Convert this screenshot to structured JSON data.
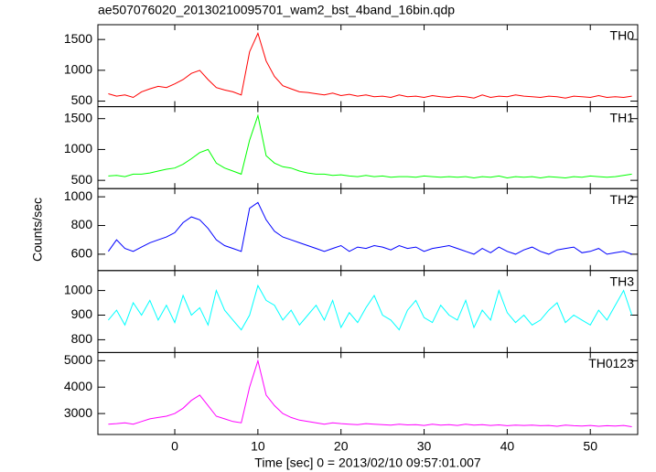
{
  "chart_data": {
    "type": "line",
    "title": "ae507076020_20130210095701_wam2_bst_4band_16bin.qdp",
    "x_label": "Time [sec] 0 = 2013/02/10 09:57:01.007",
    "y_label": "Counts/sec",
    "xlim": [
      -9.25,
      55.7
    ],
    "xticks": [
      0,
      10,
      20,
      30,
      40,
      50
    ],
    "x": [
      -8,
      -7,
      -6,
      -5,
      -4,
      -3,
      -2,
      -1,
      0,
      1,
      2,
      3,
      4,
      5,
      6,
      7,
      8,
      9,
      10,
      11,
      12,
      13,
      14,
      15,
      16,
      17,
      18,
      19,
      20,
      21,
      22,
      23,
      24,
      25,
      26,
      27,
      28,
      29,
      30,
      31,
      32,
      33,
      34,
      35,
      36,
      37,
      38,
      39,
      40,
      41,
      42,
      43,
      44,
      45,
      46,
      47,
      48,
      49,
      50,
      51,
      52,
      53,
      54,
      55
    ],
    "series": [
      {
        "name": "TH0",
        "color": "#ff0000",
        "ylim": [
          410,
          1740
        ],
        "yticks": [
          500,
          1000,
          1500
        ],
        "values": [
          620,
          580,
          600,
          560,
          650,
          700,
          740,
          720,
          780,
          850,
          950,
          1000,
          850,
          720,
          680,
          650,
          600,
          1300,
          1600,
          1150,
          900,
          750,
          700,
          650,
          640,
          620,
          600,
          630,
          590,
          610,
          580,
          600,
          570,
          580,
          560,
          600,
          570,
          580,
          560,
          590,
          570,
          560,
          580,
          570,
          550,
          600,
          560,
          580,
          570,
          600,
          580,
          570,
          560,
          580,
          570,
          550,
          580,
          570,
          560,
          590,
          560,
          570,
          560,
          580
        ]
      },
      {
        "name": "TH1",
        "color": "#00ff00",
        "ylim": [
          366,
          1694
        ],
        "yticks": [
          500,
          1000,
          1500
        ],
        "values": [
          570,
          580,
          560,
          600,
          600,
          620,
          650,
          680,
          700,
          760,
          850,
          950,
          1000,
          780,
          700,
          650,
          600,
          1150,
          1550,
          900,
          780,
          720,
          700,
          650,
          620,
          600,
          600,
          580,
          590,
          570,
          560,
          580,
          560,
          570,
          550,
          560,
          560,
          550,
          570,
          560,
          550,
          560,
          550,
          560,
          540,
          560,
          550,
          570,
          540,
          560,
          550,
          560,
          540,
          560,
          550,
          540,
          560,
          550,
          570,
          560,
          550,
          560,
          580,
          600
        ]
      },
      {
        "name": "TH2",
        "color": "#0000ff",
        "ylim": [
          486,
          1057
        ],
        "yticks": [
          600,
          800,
          1000
        ],
        "values": [
          620,
          700,
          640,
          620,
          650,
          680,
          700,
          720,
          750,
          820,
          860,
          840,
          780,
          700,
          660,
          640,
          620,
          920,
          960,
          840,
          760,
          720,
          700,
          680,
          660,
          640,
          620,
          640,
          660,
          620,
          650,
          640,
          660,
          650,
          630,
          660,
          640,
          650,
          620,
          640,
          650,
          660,
          640,
          620,
          600,
          640,
          610,
          650,
          620,
          600,
          630,
          650,
          620,
          600,
          630,
          640,
          650,
          610,
          620,
          640,
          600,
          610,
          620,
          600
        ]
      },
      {
        "name": "TH3",
        "color": "#00ffff",
        "ylim": [
          748,
          1081
        ],
        "yticks": [
          800,
          900,
          1000
        ],
        "values": [
          880,
          920,
          860,
          950,
          900,
          960,
          880,
          940,
          870,
          980,
          900,
          930,
          860,
          1000,
          920,
          880,
          840,
          900,
          1020,
          960,
          940,
          880,
          920,
          860,
          900,
          940,
          880,
          960,
          850,
          910,
          870,
          930,
          980,
          900,
          880,
          840,
          920,
          960,
          890,
          870,
          940,
          900,
          880,
          960,
          850,
          920,
          880,
          1000,
          910,
          870,
          900,
          860,
          880,
          920,
          950,
          870,
          900,
          880,
          860,
          920,
          880,
          940,
          1000,
          900
        ]
      },
      {
        "name": "TH0123",
        "color": "#ff00ff",
        "ylim": [
          2207,
          5310
        ],
        "yticks": [
          3000,
          4000,
          5000
        ],
        "values": [
          2600,
          2620,
          2650,
          2600,
          2700,
          2800,
          2850,
          2900,
          3000,
          3200,
          3500,
          3700,
          3300,
          2900,
          2800,
          2700,
          2650,
          4000,
          5000,
          3700,
          3300,
          3000,
          2850,
          2750,
          2700,
          2650,
          2600,
          2650,
          2620,
          2600,
          2580,
          2620,
          2600,
          2580,
          2560,
          2600,
          2570,
          2580,
          2550,
          2600,
          2560,
          2580,
          2550,
          2600,
          2560,
          2580,
          2550,
          2570,
          2540,
          2560,
          2550,
          2560,
          2540,
          2550,
          2520,
          2560,
          2540,
          2530,
          2550,
          2520,
          2540,
          2530,
          2550,
          2500
        ]
      }
    ]
  }
}
